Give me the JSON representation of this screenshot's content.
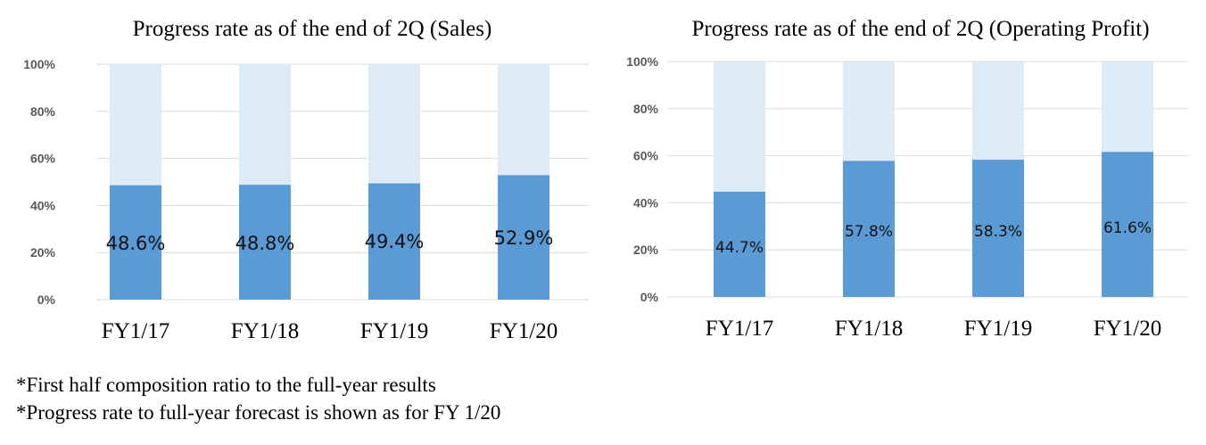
{
  "chart_data": [
    {
      "type": "bar",
      "stacked": true,
      "title": "Progress rate as of the end of 2Q (Sales)",
      "categories": [
        "FY1/17",
        "FY1/18",
        "FY1/19",
        "FY1/20"
      ],
      "values": [
        48.6,
        48.8,
        49.4,
        52.9
      ],
      "data_labels": [
        "48.6%",
        "48.8%",
        "49.4%",
        "52.9%"
      ],
      "ylim": [
        0,
        100
      ],
      "yticks": [
        "0%",
        "20%",
        "40%",
        "60%",
        "80%",
        "100%"
      ],
      "grid": true,
      "colors": {
        "value": "#5b9bd5",
        "remainder": "#ddebf7",
        "grid": "#d9d9d9"
      }
    },
    {
      "type": "bar",
      "stacked": true,
      "title": "Progress rate as of the end of 2Q (Operating Profit)",
      "categories": [
        "FY1/17",
        "FY1/18",
        "FY1/19",
        "FY1/20"
      ],
      "values": [
        44.7,
        57.8,
        58.3,
        61.6
      ],
      "data_labels": [
        "44.7%",
        "57.8%",
        "58.3%",
        "61.6%"
      ],
      "ylim": [
        0,
        100
      ],
      "yticks": [
        "0%",
        "20%",
        "40%",
        "60%",
        "80%",
        "100%"
      ],
      "grid": true,
      "colors": {
        "value": "#5b9bd5",
        "remainder": "#ddebf7",
        "grid": "#d9d9d9"
      }
    }
  ],
  "notes": [
    "*First half composition ratio to the full-year results",
    "*Progress rate to full-year forecast is shown as for FY 1/20"
  ]
}
